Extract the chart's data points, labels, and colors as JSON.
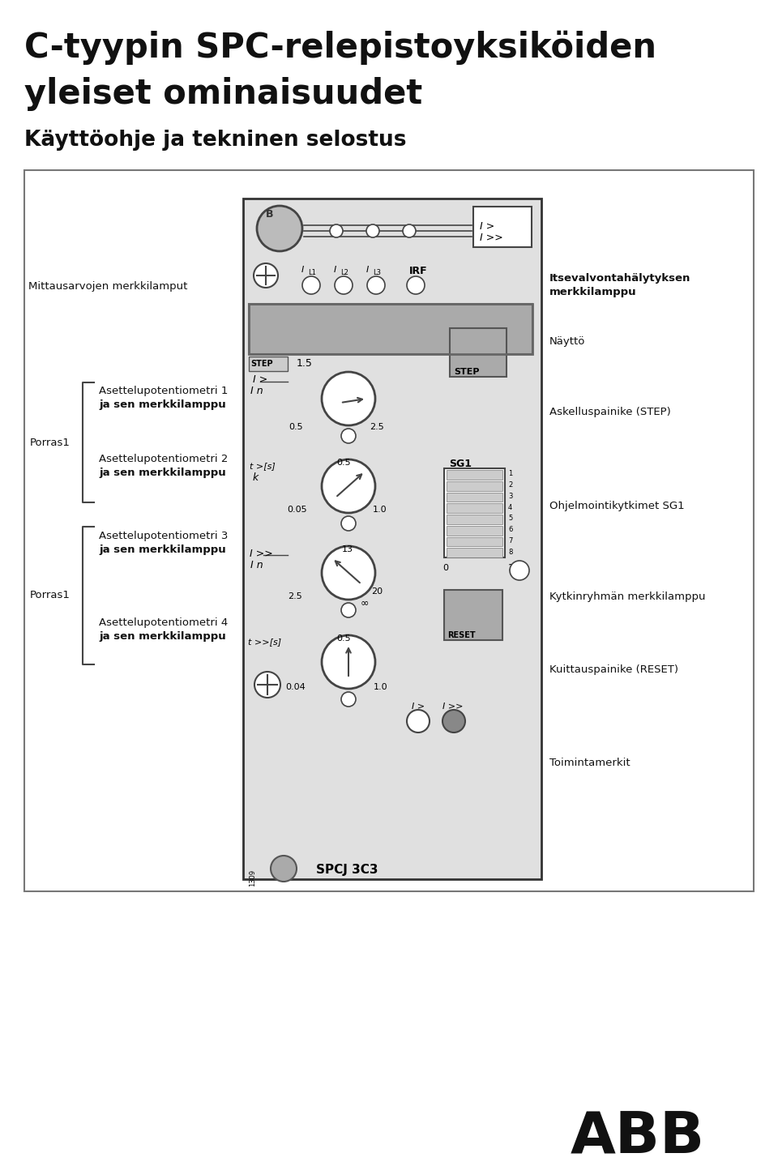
{
  "title_line1": "C-tyypin SPC-relepistoyksiköiden",
  "title_line2": "yleiset ominaisuudet",
  "subtitle": "Käyttöohje ja tekninen selostus",
  "bg_color": "#ffffff",
  "text_color": "#000000"
}
